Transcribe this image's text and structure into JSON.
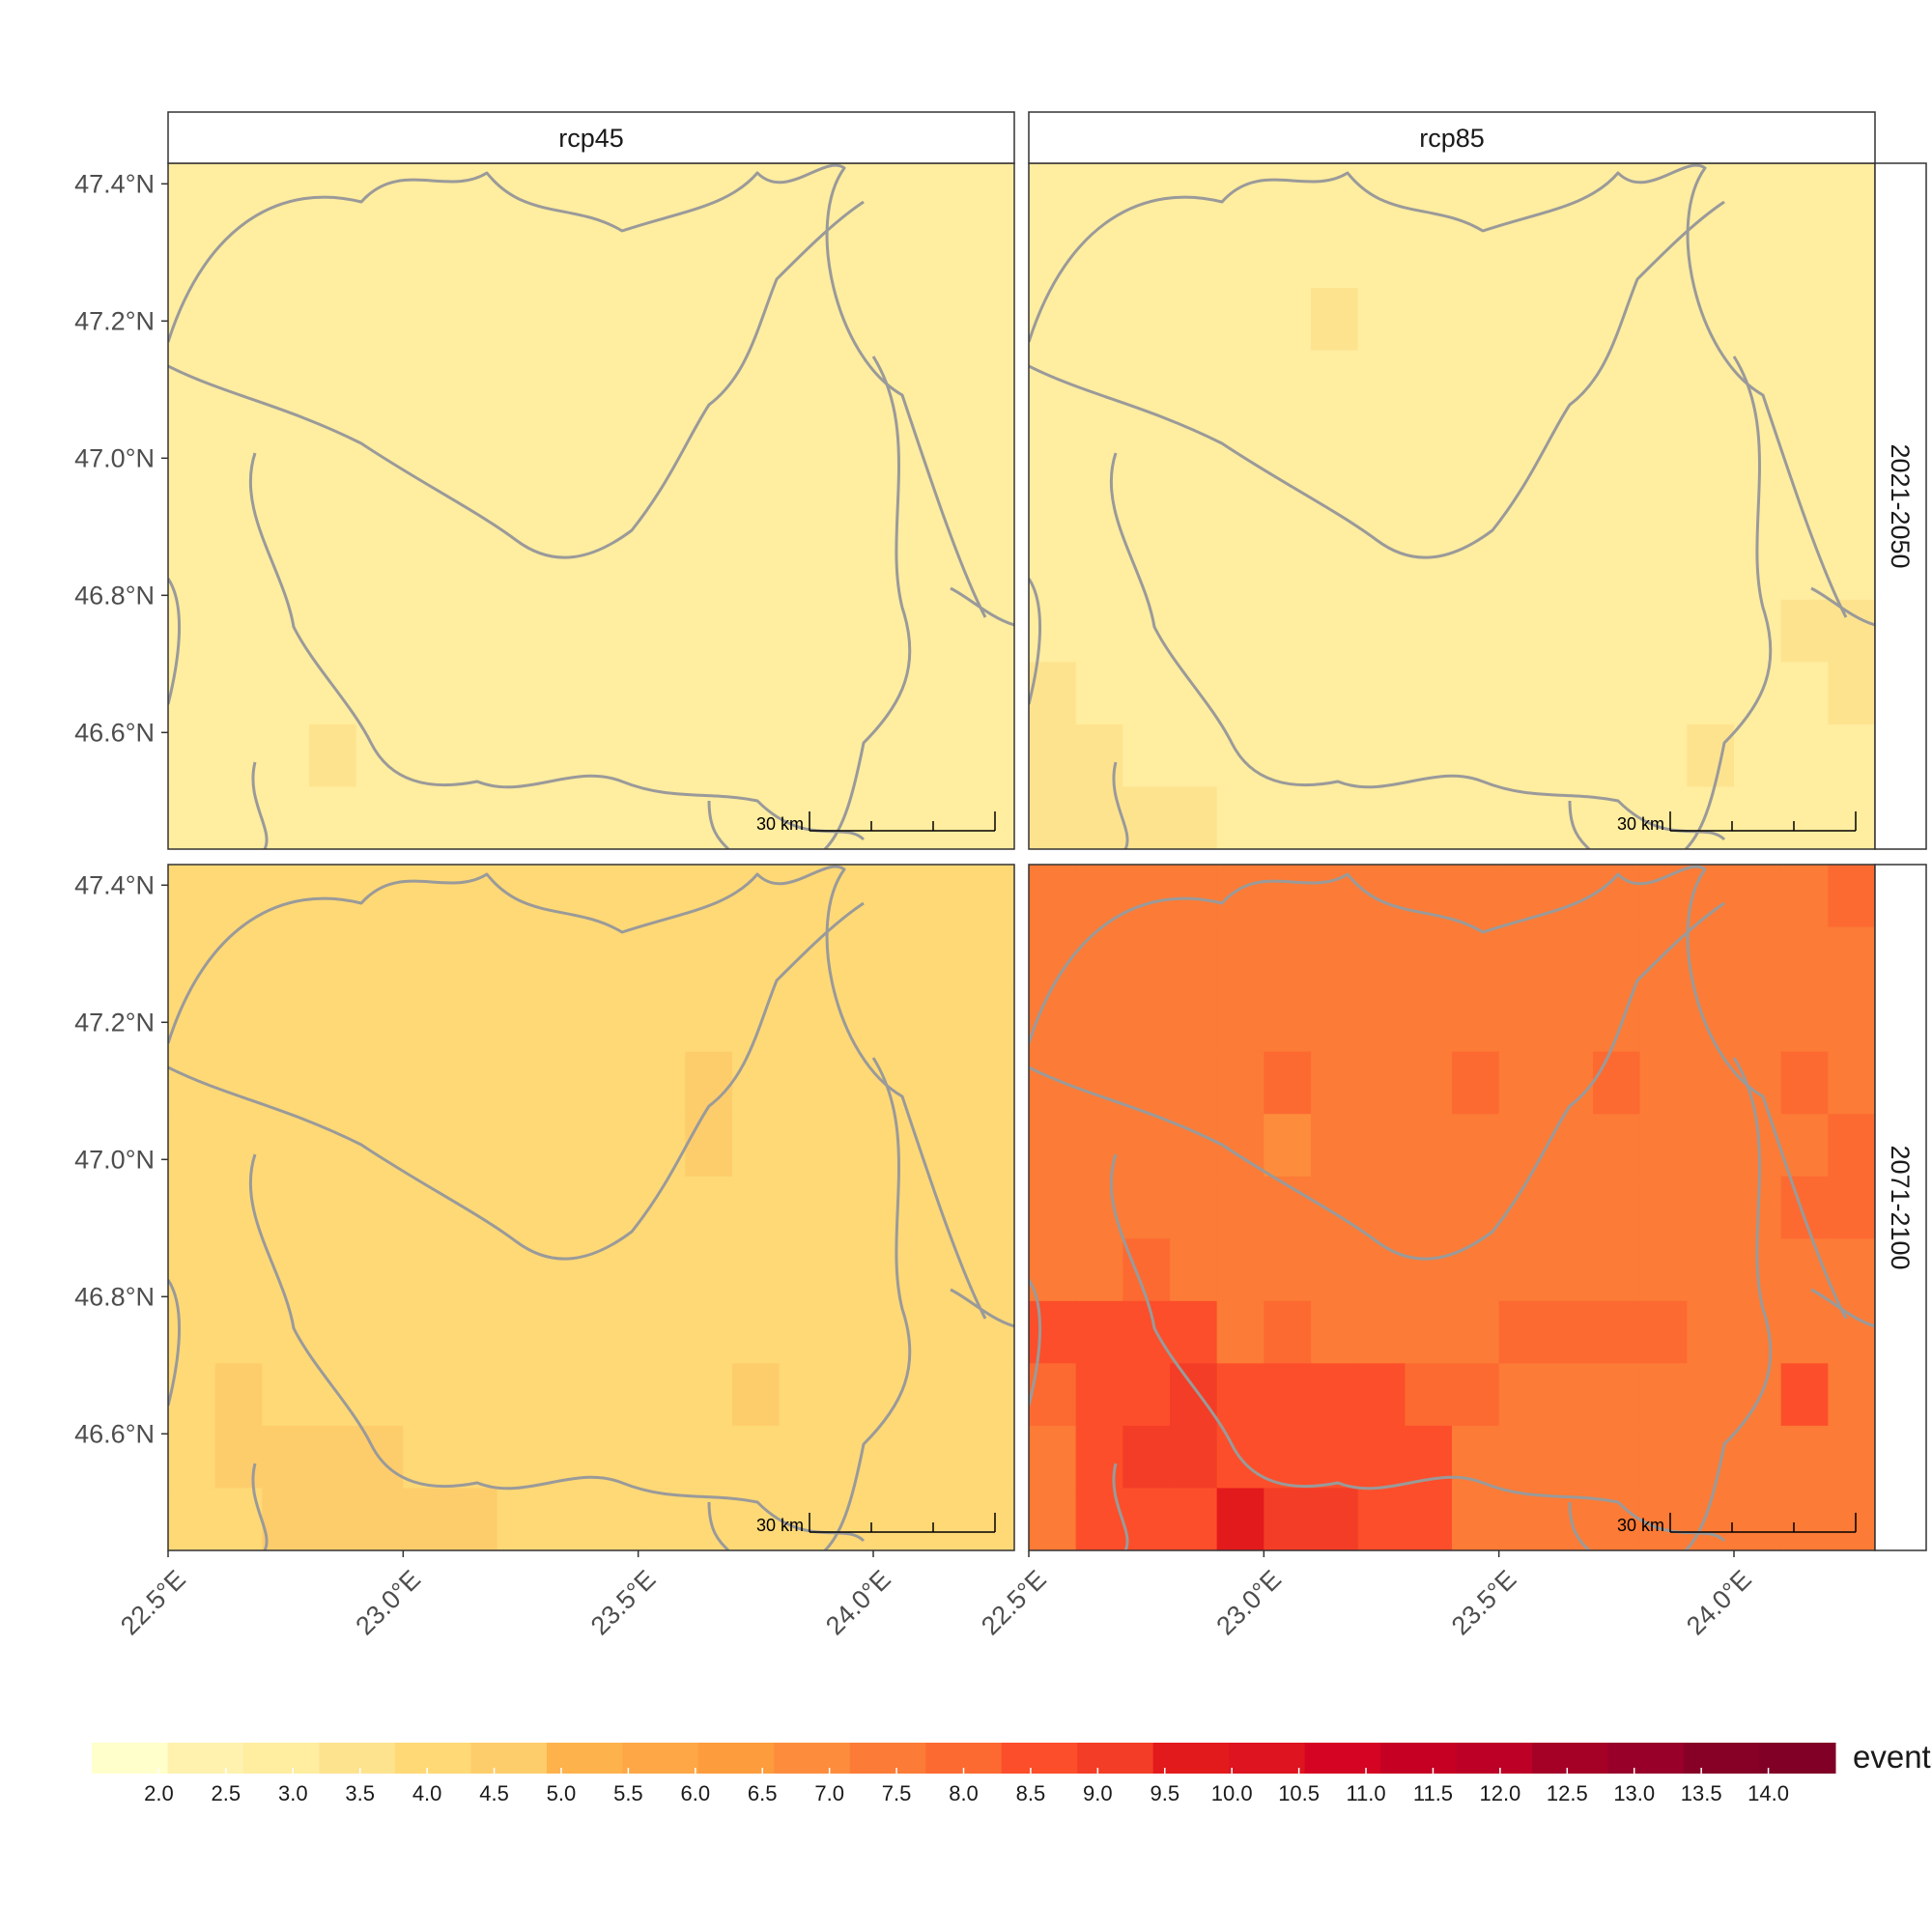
{
  "chart_data": {
    "type": "heatmap",
    "facet_columns": [
      "rcp45",
      "rcp85"
    ],
    "facet_rows": [
      "2021-2050",
      "2071-2100"
    ],
    "x_tick_labels": [
      "22.5°E",
      "23.0°E",
      "23.5°E",
      "24.0°E"
    ],
    "x_ticks": [
      22.5,
      23.0,
      23.5,
      24.0
    ],
    "y_tick_labels": [
      "47.4°N",
      "47.2°N",
      "47.0°N",
      "46.8°N",
      "46.6°N"
    ],
    "y_ticks": [
      47.4,
      47.2,
      47.0,
      46.8,
      46.6
    ],
    "xlim": [
      22.5,
      24.3
    ],
    "ylim": [
      46.43,
      47.43
    ],
    "scale_bar_label": "30 km",
    "legend": {
      "title": "events",
      "position": "bottom",
      "palette_hex": [
        "#ffffcc",
        "#fff2ae",
        "#ffeda0",
        "#fee38f",
        "#fed976",
        "#fecd6b",
        "#feb24c",
        "#fda746",
        "#fd9c3c",
        "#fd8d3c",
        "#fc7b36",
        "#fc6a32",
        "#fc4e2a",
        "#f43d26",
        "#e31a1c",
        "#de1420",
        "#d40422",
        "#c50023",
        "#bd0026",
        "#a50026",
        "#98002a",
        "#870026",
        "#800026"
      ],
      "tick_labels": [
        "2.0",
        "2.5",
        "3.0",
        "3.5",
        "4.0",
        "4.5",
        "5.0",
        "5.5",
        "6.0",
        "6.5",
        "7.0",
        "7.5",
        "8.0",
        "8.5",
        "9.0",
        "9.5",
        "10.0",
        "10.5",
        "11.0",
        "11.5",
        "12.0",
        "12.5",
        "13.0",
        "13.5",
        "14.0"
      ],
      "min": 1.5,
      "max": 14.5
    },
    "panels": [
      {
        "column": "rcp45",
        "row": "2021-2050",
        "grid": [
          [
            2.8,
            2.8,
            2.8,
            2.9,
            3.0,
            3.0,
            3.0,
            2.9,
            2.9,
            3.0,
            3.0,
            3.0,
            3.0,
            3.0,
            3.0,
            3.0,
            3.0,
            2.9
          ],
          [
            2.8,
            2.7,
            2.8,
            2.9,
            3.0,
            2.9,
            2.8,
            3.0,
            2.8,
            3.0,
            3.0,
            3.0,
            2.9,
            3.0,
            3.0,
            3.0,
            3.0,
            2.9
          ],
          [
            2.8,
            2.9,
            3.0,
            3.0,
            2.8,
            3.0,
            3.0,
            3.0,
            3.0,
            3.0,
            3.0,
            3.0,
            2.9,
            2.8,
            2.9,
            3.0,
            3.0,
            3.0
          ],
          [
            2.9,
            2.9,
            2.9,
            3.0,
            3.0,
            3.0,
            3.0,
            3.0,
            3.0,
            3.0,
            3.0,
            2.9,
            2.8,
            2.8,
            2.8,
            3.0,
            2.9,
            2.7
          ],
          [
            2.9,
            2.9,
            3.0,
            3.0,
            3.0,
            2.9,
            3.0,
            3.0,
            3.0,
            3.0,
            2.8,
            2.8,
            2.9,
            2.9,
            2.9,
            3.0,
            3.0,
            2.9
          ],
          [
            2.9,
            2.9,
            3.0,
            3.0,
            3.0,
            2.9,
            3.0,
            3.0,
            2.7,
            2.9,
            2.9,
            3.0,
            3.0,
            2.9,
            3.0,
            3.0,
            3.0,
            3.0
          ],
          [
            3.0,
            3.0,
            3.0,
            2.9,
            3.0,
            3.0,
            3.0,
            2.8,
            2.7,
            2.8,
            2.8,
            3.0,
            3.0,
            3.0,
            3.0,
            3.0,
            3.0,
            3.0
          ],
          [
            3.0,
            3.0,
            2.9,
            2.8,
            3.0,
            2.8,
            2.7,
            2.7,
            2.7,
            2.9,
            2.9,
            2.8,
            3.0,
            3.0,
            3.0,
            3.0,
            2.8,
            3.0
          ],
          [
            3.0,
            3.0,
            3.0,
            3.0,
            3.0,
            2.7,
            2.7,
            2.7,
            2.7,
            2.9,
            2.9,
            2.9,
            3.0,
            3.0,
            3.0,
            3.0,
            2.9,
            2.9
          ],
          [
            3.0,
            3.0,
            3.0,
            3.2,
            3.0,
            2.8,
            2.8,
            2.7,
            2.7,
            2.8,
            2.9,
            3.0,
            3.0,
            3.0,
            3.0,
            2.9,
            2.9,
            2.9
          ],
          [
            3.0,
            3.0,
            3.1,
            3.1,
            3.1,
            3.0,
            2.9,
            2.9,
            2.9,
            2.9,
            3.0,
            3.0,
            3.0,
            3.0,
            3.0,
            3.0,
            2.9,
            2.9
          ]
        ]
      },
      {
        "column": "rcp85",
        "row": "2021-2050",
        "grid": [
          [
            3.0,
            3.0,
            3.0,
            3.0,
            3.0,
            3.0,
            3.0,
            3.0,
            3.0,
            3.0,
            3.0,
            3.0,
            3.0,
            3.0,
            3.0,
            3.0,
            3.0,
            3.0
          ],
          [
            3.0,
            3.0,
            3.0,
            3.0,
            3.0,
            3.0,
            3.0,
            3.0,
            3.0,
            3.0,
            3.0,
            3.0,
            3.0,
            3.0,
            3.0,
            3.0,
            3.0,
            3.0
          ],
          [
            3.0,
            3.0,
            3.0,
            3.0,
            3.0,
            3.0,
            3.2,
            3.0,
            3.0,
            3.0,
            3.0,
            3.0,
            3.0,
            3.0,
            3.0,
            3.0,
            3.0,
            3.0
          ],
          [
            3.0,
            3.0,
            3.0,
            3.0,
            3.0,
            3.0,
            3.0,
            3.0,
            3.0,
            3.0,
            3.0,
            3.0,
            3.0,
            3.0,
            3.0,
            3.0,
            3.0,
            3.0
          ],
          [
            3.0,
            3.0,
            3.0,
            3.0,
            3.0,
            3.0,
            3.0,
            3.0,
            3.0,
            3.0,
            3.0,
            3.0,
            3.0,
            3.0,
            3.0,
            3.0,
            3.0,
            3.0
          ],
          [
            3.0,
            3.0,
            3.0,
            3.0,
            3.0,
            3.0,
            3.0,
            3.0,
            3.0,
            3.0,
            3.0,
            3.0,
            3.0,
            3.0,
            3.0,
            3.0,
            3.0,
            3.0
          ],
          [
            3.0,
            3.0,
            3.0,
            3.0,
            3.0,
            3.0,
            3.0,
            3.0,
            3.0,
            3.0,
            3.0,
            3.0,
            3.0,
            3.0,
            3.0,
            3.0,
            3.0,
            3.0
          ],
          [
            3.0,
            3.0,
            3.0,
            3.0,
            3.0,
            3.0,
            3.0,
            3.0,
            3.0,
            3.0,
            3.0,
            3.0,
            3.0,
            3.0,
            3.0,
            3.0,
            3.2,
            3.2
          ],
          [
            3.2,
            3.0,
            2.8,
            3.0,
            3.0,
            3.0,
            3.0,
            3.0,
            3.0,
            3.0,
            3.0,
            3.0,
            3.0,
            3.0,
            3.0,
            3.0,
            3.0,
            3.2
          ],
          [
            3.2,
            3.2,
            3.0,
            3.0,
            3.0,
            3.0,
            2.8,
            3.0,
            3.0,
            3.0,
            3.0,
            3.0,
            3.0,
            3.0,
            3.2,
            3.0,
            3.0,
            3.0
          ],
          [
            3.2,
            3.2,
            3.2,
            3.2,
            3.0,
            3.0,
            2.9,
            2.9,
            3.0,
            3.0,
            3.0,
            3.0,
            3.0,
            3.0,
            3.0,
            3.0,
            3.0,
            3.0
          ]
        ]
      },
      {
        "column": "rcp45",
        "row": "2071-2100",
        "grid": [
          [
            4.2,
            4.2,
            4.2,
            4.3,
            4.3,
            4.3,
            4.3,
            4.3,
            4.3,
            4.2,
            4.3,
            4.3,
            4.3,
            4.3,
            4.3,
            4.3,
            4.0,
            4.0
          ],
          [
            4.2,
            4.0,
            4.2,
            4.2,
            4.3,
            4.3,
            4.3,
            4.2,
            4.3,
            4.3,
            4.3,
            4.3,
            4.3,
            4.3,
            4.3,
            4.3,
            4.1,
            4.3
          ],
          [
            4.3,
            4.0,
            4.0,
            4.2,
            4.3,
            4.3,
            4.3,
            4.3,
            4.3,
            4.3,
            4.3,
            4.3,
            4.3,
            4.3,
            4.3,
            4.3,
            4.3,
            4.3
          ],
          [
            4.3,
            4.3,
            4.3,
            4.3,
            4.3,
            4.3,
            4.3,
            4.3,
            4.3,
            4.3,
            4.3,
            4.4,
            4.3,
            4.3,
            4.3,
            4.3,
            4.3,
            4.3
          ],
          [
            4.3,
            4.3,
            4.3,
            4.3,
            4.3,
            4.3,
            4.3,
            4.3,
            4.3,
            4.3,
            4.3,
            4.5,
            4.3,
            4.2,
            4.3,
            4.3,
            4.3,
            4.3
          ],
          [
            4.3,
            4.3,
            4.3,
            4.3,
            4.3,
            4.3,
            4.3,
            4.3,
            4.3,
            4.3,
            4.3,
            4.3,
            4.3,
            4.3,
            4.2,
            4.3,
            4.3,
            4.3
          ],
          [
            4.3,
            4.3,
            4.3,
            4.3,
            4.3,
            4.3,
            4.3,
            4.2,
            4.2,
            4.3,
            4.3,
            4.3,
            4.3,
            4.2,
            4.3,
            4.3,
            4.3,
            4.3
          ],
          [
            4.3,
            4.3,
            4.3,
            4.3,
            4.3,
            4.3,
            4.3,
            4.3,
            4.3,
            4.3,
            4.2,
            4.2,
            4.3,
            4.3,
            4.3,
            4.3,
            4.3,
            4.3
          ],
          [
            4.3,
            4.5,
            4.3,
            4.3,
            4.3,
            4.3,
            4.3,
            4.1,
            4.1,
            4.1,
            4.1,
            4.3,
            4.5,
            4.3,
            4.3,
            4.3,
            4.3,
            4.3
          ],
          [
            4.3,
            4.6,
            4.6,
            4.7,
            4.6,
            4.3,
            4.3,
            4.3,
            4.3,
            4.2,
            4.2,
            4.3,
            4.3,
            4.3,
            4.3,
            4.3,
            4.2,
            4.3
          ],
          [
            4.3,
            4.3,
            4.5,
            4.6,
            4.6,
            4.7,
            4.6,
            4.3,
            4.3,
            4.3,
            4.3,
            4.3,
            4.3,
            4.3,
            4.3,
            4.3,
            4.3,
            4.3
          ]
        ]
      },
      {
        "column": "rcp85",
        "row": "2071-2100",
        "grid": [
          [
            7.2,
            7.2,
            7.2,
            7.2,
            7.2,
            7.2,
            7.2,
            7.6,
            7.2,
            7.2,
            7.2,
            7.2,
            7.2,
            7.6,
            7.6,
            7.6,
            7.6,
            8.2
          ],
          [
            7.2,
            7.2,
            7.2,
            7.2,
            7.2,
            7.2,
            7.2,
            7.2,
            7.2,
            7.2,
            7.2,
            7.6,
            7.6,
            7.6,
            7.6,
            7.6,
            7.6,
            7.6
          ],
          [
            7.6,
            7.2,
            7.2,
            7.2,
            7.2,
            7.6,
            7.6,
            7.6,
            7.6,
            7.6,
            7.6,
            7.6,
            7.6,
            7.6,
            7.2,
            7.6,
            7.6,
            7.6
          ],
          [
            7.2,
            7.2,
            7.2,
            7.2,
            7.2,
            8.0,
            7.6,
            7.6,
            7.6,
            8.0,
            7.6,
            7.6,
            8.2,
            7.6,
            7.6,
            7.6,
            8.2,
            7.6
          ],
          [
            7.2,
            7.2,
            7.2,
            7.2,
            7.2,
            6.8,
            7.6,
            7.6,
            7.6,
            7.6,
            7.6,
            7.6,
            7.6,
            7.6,
            7.6,
            7.6,
            7.6,
            8.2
          ],
          [
            7.2,
            7.2,
            7.6,
            7.6,
            7.6,
            7.2,
            7.6,
            7.6,
            7.6,
            7.6,
            7.6,
            7.6,
            7.6,
            7.6,
            7.6,
            7.6,
            8.2,
            8.0
          ],
          [
            7.6,
            7.6,
            8.0,
            7.6,
            7.6,
            7.6,
            7.6,
            7.6,
            7.6,
            7.2,
            7.6,
            7.2,
            7.6,
            7.2,
            7.6,
            7.6,
            7.6,
            7.6
          ],
          [
            8.3,
            8.3,
            8.3,
            8.3,
            7.6,
            8.0,
            7.6,
            7.6,
            7.2,
            7.2,
            8.0,
            8.0,
            8.0,
            8.0,
            7.6,
            7.6,
            7.6,
            7.6
          ],
          [
            8.0,
            8.6,
            8.6,
            9.2,
            8.6,
            8.3,
            8.3,
            8.3,
            8.0,
            8.0,
            7.6,
            7.6,
            7.6,
            7.6,
            7.6,
            7.6,
            8.3,
            7.6
          ],
          [
            7.6,
            8.6,
            9.2,
            9.2,
            8.6,
            8.6,
            8.6,
            8.6,
            8.6,
            7.6,
            7.6,
            7.6,
            7.6,
            7.6,
            7.6,
            7.6,
            7.6,
            7.6
          ],
          [
            7.6,
            8.6,
            8.6,
            8.6,
            9.5,
            9.0,
            9.2,
            8.6,
            8.6,
            7.6,
            7.6,
            7.6,
            7.6,
            7.6,
            7.6,
            7.6,
            7.6,
            7.6
          ]
        ]
      }
    ]
  }
}
